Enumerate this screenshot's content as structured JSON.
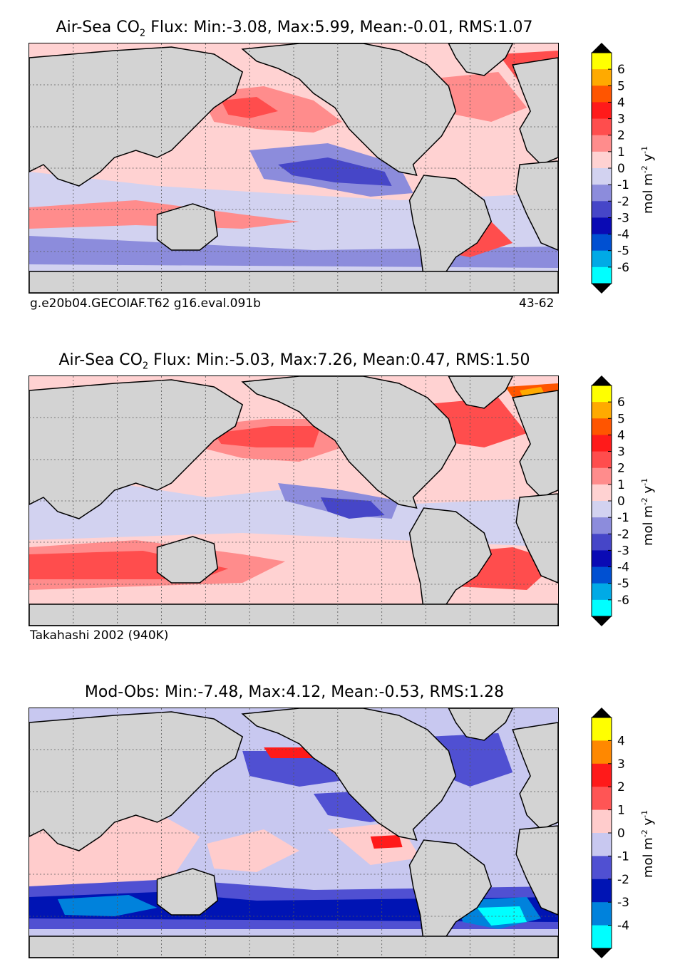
{
  "panels": [
    {
      "title_prefix": "Air-Sea CO",
      "title_sub": "2",
      "title_rest": " Flux: Min:-3.08, Max:5.99, Mean:-0.01, RMS:1.07",
      "left_label": "g.e20b04.GECOIAF.T62 g16.eval.091b",
      "right_label": "43-62",
      "colorbar": {
        "ticks": [
          "6",
          "5",
          "4",
          "3",
          "2",
          "1",
          "0",
          "-1",
          "-2",
          "-3",
          "-4",
          "-5",
          "-6"
        ],
        "colors": [
          "#ffff00",
          "#ffaa00",
          "#ff5500",
          "#ff1a1a",
          "#ff4d4d",
          "#ff8c8c",
          "#ffd2d2",
          "#d2d2f0",
          "#8c8cdc",
          "#4646c8",
          "#0a0ab4",
          "#0050d2",
          "#00aae6",
          "#00ffff"
        ],
        "unit": "mol m",
        "unit_exp1": "-2",
        "unit_mid": " y",
        "unit_exp2": "-1"
      }
    },
    {
      "title_prefix": "Air-Sea CO",
      "title_sub": "2",
      "title_rest": " Flux: Min:-5.03, Max:7.26, Mean:0.47, RMS:1.50",
      "left_label": "Takahashi 2002 (940K)",
      "right_label": "",
      "colorbar": {
        "ticks": [
          "6",
          "5",
          "4",
          "3",
          "2",
          "1",
          "0",
          "-1",
          "-2",
          "-3",
          "-4",
          "-5",
          "-6"
        ],
        "colors": [
          "#ffff00",
          "#ffaa00",
          "#ff5500",
          "#ff1a1a",
          "#ff4d4d",
          "#ff8c8c",
          "#ffd2d2",
          "#d2d2f0",
          "#8c8cdc",
          "#4646c8",
          "#0a0ab4",
          "#0050d2",
          "#00aae6",
          "#00ffff"
        ],
        "unit": "mol m",
        "unit_exp1": "-2",
        "unit_mid": " y",
        "unit_exp2": "-1"
      }
    },
    {
      "title_prefix": "Mod-Obs: Min:-7.48, Max:4.12, Mean:-0.53, RMS:1.28",
      "title_sub": "",
      "title_rest": "",
      "left_label": "",
      "right_label": "",
      "colorbar": {
        "ticks": [
          "4",
          "3",
          "2",
          "1",
          "0",
          "-1",
          "-2",
          "-3",
          "-4"
        ],
        "colors": [
          "#ffff00",
          "#ff8800",
          "#ff1a1a",
          "#ff5555",
          "#ffcccc",
          "#c8c8f0",
          "#5050d2",
          "#0014b4",
          "#0082dc",
          "#00ffff"
        ],
        "unit": "mol m",
        "unit_exp1": "-2",
        "unit_mid": " y",
        "unit_exp2": "-1"
      }
    }
  ],
  "land_color": "#d3d3d3"
}
